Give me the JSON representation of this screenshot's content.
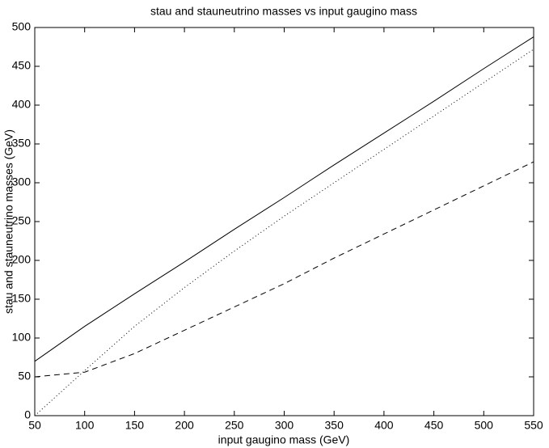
{
  "chart_data": {
    "type": "line",
    "title": "stau and stauneutrino masses vs input gaugino mass",
    "x_label": "input gaugino mass (GeV)",
    "y_label": "stau and stauneutrino masses (GeV)",
    "x": [
      50,
      100,
      150,
      200,
      250,
      300,
      350,
      400,
      450,
      500,
      550
    ],
    "series": [
      {
        "color": "#000000",
        "style": "solid",
        "values": [
          70,
          115,
          157,
          198,
          240,
          281,
          323,
          364,
          405,
          447,
          488
        ]
      },
      {
        "color": "#000000",
        "style": "dotted",
        "values": [
          0,
          58,
          115,
          165,
          212,
          257,
          300,
          343,
          386,
          429,
          472
        ]
      },
      {
        "color": "#000000",
        "style": "dashed",
        "values": [
          50,
          56,
          80,
          110,
          140,
          170,
          203,
          234,
          265,
          296,
          327
        ]
      }
    ],
    "xlim": [
      50,
      550
    ],
    "xticks": [
      50,
      100,
      150,
      200,
      250,
      300,
      350,
      400,
      450,
      500,
      550
    ],
    "ylim": [
      0,
      500
    ],
    "yticks": [
      0,
      50,
      100,
      150,
      200,
      250,
      300,
      350,
      400,
      450,
      500
    ],
    "grid": false
  }
}
